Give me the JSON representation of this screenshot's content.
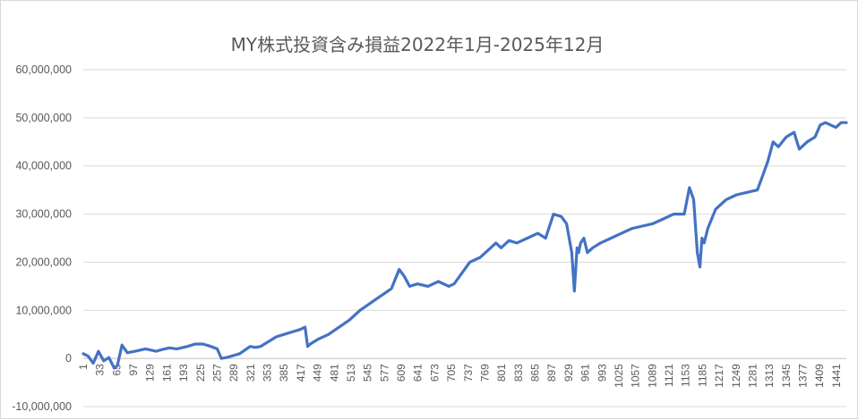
{
  "chart_data": {
    "type": "line",
    "title": "MY株式投資含み損益2022年1月-2025年12月",
    "xlabel": "",
    "ylabel": "",
    "ylim": [
      -10000000,
      60000000
    ],
    "y_ticks": [
      "-10,000,000",
      "0",
      "10,000,000",
      "20,000,000",
      "30,000,000",
      "40,000,000",
      "50,000,000",
      "60,000,000"
    ],
    "x_ticks": [
      "1",
      "33",
      "65",
      "97",
      "129",
      "161",
      "193",
      "225",
      "257",
      "289",
      "321",
      "353",
      "385",
      "417",
      "449",
      "481",
      "513",
      "545",
      "577",
      "609",
      "641",
      "673",
      "705",
      "737",
      "769",
      "801",
      "833",
      "865",
      "897",
      "929",
      "961",
      "993",
      "1025",
      "1057",
      "1089",
      "1121",
      "1153",
      "1185",
      "1217",
      "1249",
      "1281",
      "1313",
      "1345",
      "1377",
      "1409",
      "1441"
    ],
    "x_range": [
      1,
      1460
    ],
    "grid": true,
    "legend": "none",
    "series_color": "#4472c4",
    "series": [
      {
        "x": [
          1,
          10,
          20,
          30,
          40,
          50,
          60,
          66,
          75,
          85,
          100,
          120,
          140,
          150,
          165,
          180,
          200,
          215,
          230,
          245,
          257,
          265,
          275,
          285,
          300,
          320,
          330,
          340,
          355,
          370,
          385,
          400,
          415,
          425,
          430,
          435,
          450,
          470,
          490,
          510,
          530,
          550,
          570,
          590,
          605,
          615,
          625,
          640,
          660,
          680,
          700,
          710,
          720,
          740,
          760,
          780,
          790,
          800,
          815,
          830,
          850,
          870,
          885,
          900,
          915,
          925,
          935,
          940,
          945,
          948,
          952,
          958,
          965,
          975,
          990,
          1010,
          1030,
          1050,
          1070,
          1090,
          1110,
          1130,
          1150,
          1160,
          1168,
          1175,
          1180,
          1184,
          1188,
          1195,
          1210,
          1230,
          1250,
          1270,
          1290,
          1300,
          1310,
          1320,
          1330,
          1345,
          1360,
          1370,
          1385,
          1400,
          1410,
          1420,
          1430,
          1440,
          1450,
          1460
        ],
        "values": [
          1000000,
          500000,
          -1000000,
          1500000,
          -500000,
          200000,
          -2000000,
          -1500000,
          2800000,
          1200000,
          1500000,
          2000000,
          1500000,
          1800000,
          2200000,
          2000000,
          2500000,
          3000000,
          3000000,
          2500000,
          2000000,
          0,
          200000,
          500000,
          1000000,
          2500000,
          2300000,
          2500000,
          3500000,
          4500000,
          5000000,
          5500000,
          6000000,
          6500000,
          2500000,
          3000000,
          4000000,
          5000000,
          6500000,
          8000000,
          10000000,
          11500000,
          13000000,
          14500000,
          18500000,
          17000000,
          15000000,
          15500000,
          15000000,
          16000000,
          15000000,
          15500000,
          17000000,
          20000000,
          21000000,
          23000000,
          24000000,
          23000000,
          24500000,
          24000000,
          25000000,
          26000000,
          25000000,
          30000000,
          29500000,
          28000000,
          22000000,
          14000000,
          23000000,
          22000000,
          24000000,
          25000000,
          22000000,
          23000000,
          24000000,
          25000000,
          26000000,
          27000000,
          27500000,
          28000000,
          29000000,
          30000000,
          30000000,
          35500000,
          33000000,
          22000000,
          19000000,
          25000000,
          24000000,
          27000000,
          31000000,
          33000000,
          34000000,
          34500000,
          35000000,
          38000000,
          41000000,
          45000000,
          44000000,
          46000000,
          47000000,
          43500000,
          45000000,
          46000000,
          48500000,
          49000000,
          48500000,
          48000000,
          49000000,
          49000000
        ]
      }
    ]
  }
}
